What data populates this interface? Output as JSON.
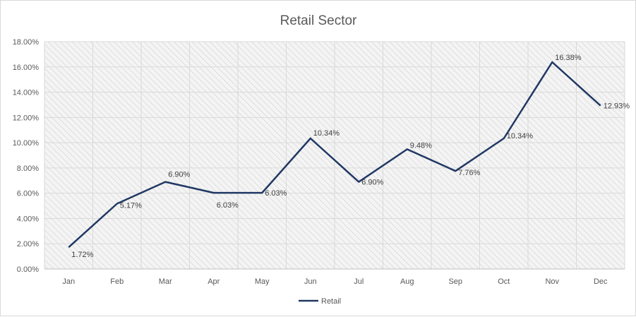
{
  "chart_data": {
    "type": "line",
    "title": "Retail Sector",
    "xlabel": "",
    "ylabel": "",
    "categories": [
      "Jan",
      "Feb",
      "Mar",
      "Apr",
      "May",
      "Jun",
      "Jul",
      "Aug",
      "Sep",
      "Oct",
      "Nov",
      "Dec"
    ],
    "series": [
      {
        "name": "Retail",
        "values": [
          1.72,
          5.17,
          6.9,
          6.03,
          6.03,
          10.34,
          6.9,
          9.48,
          7.76,
          10.34,
          16.38,
          12.93
        ],
        "labels": [
          "1.72%",
          "5.17%",
          "6.90%",
          "6.03%",
          "6.03%",
          "10.34%",
          "6.90%",
          "9.48%",
          "7.76%",
          "10.34%",
          "16.38%",
          "12.93%"
        ],
        "color": "#203864"
      }
    ],
    "ylim": [
      0,
      18
    ],
    "yticks": [
      0,
      2,
      4,
      6,
      8,
      10,
      12,
      14,
      16,
      18
    ],
    "ytick_labels": [
      "0.00%",
      "2.00%",
      "4.00%",
      "6.00%",
      "8.00%",
      "10.00%",
      "12.00%",
      "14.00%",
      "16.00%",
      "18.00%"
    ],
    "grid": true,
    "legend": "bottom",
    "plot_background": "hatched-light-gray"
  }
}
